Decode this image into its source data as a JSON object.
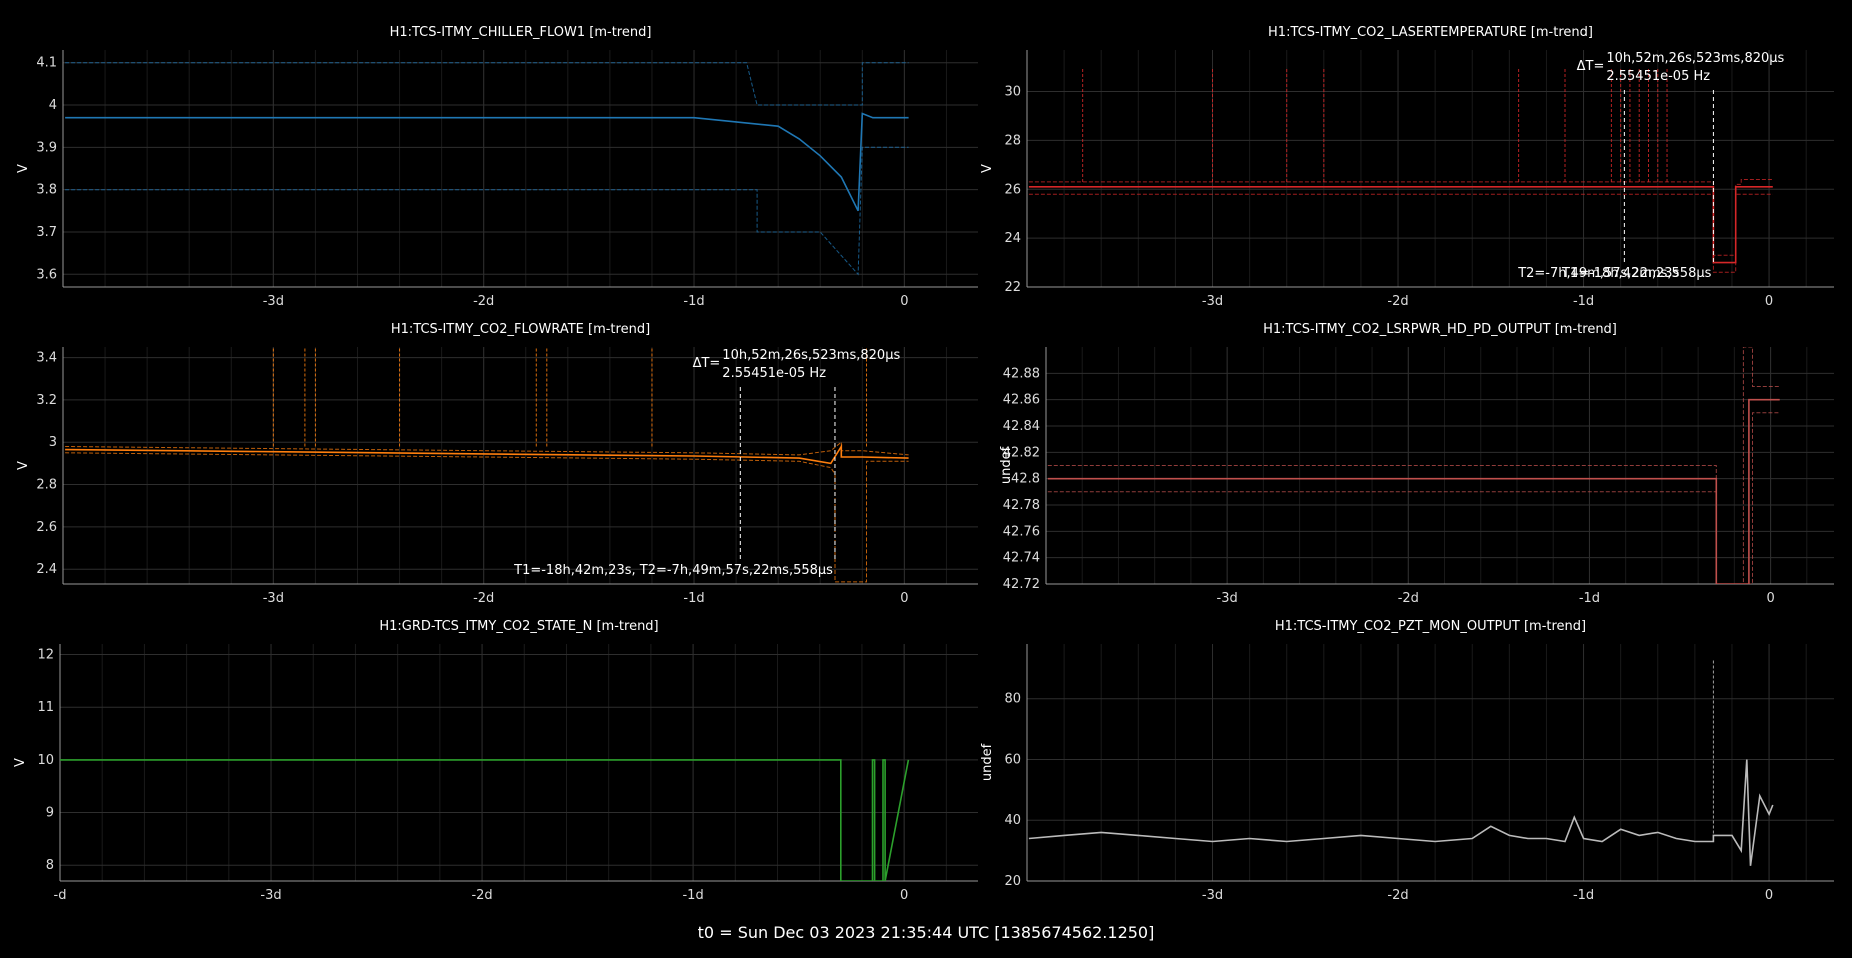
{
  "footer": "t0 = Sun Dec 03 2023 21:35:44 UTC [1385674562.1250]",
  "chart_data": [
    {
      "type": "line",
      "title": "H1:TCS-ITMY_CHILLER_FLOW1 [m-trend]",
      "ylabel": "V",
      "color": "#1f77b4",
      "xlim": [
        -4.0,
        0.35
      ],
      "ylim": [
        3.57,
        4.13
      ],
      "xticks": [
        {
          "v": -3,
          "label": "-3d"
        },
        {
          "v": -2,
          "label": "-2d"
        },
        {
          "v": -1,
          "label": "-1d"
        },
        {
          "v": 0,
          "label": "0"
        }
      ],
      "yticks": [
        {
          "v": 3.6,
          "label": "3.6"
        },
        {
          "v": 3.7,
          "label": "3.7"
        },
        {
          "v": 3.8,
          "label": "3.8"
        },
        {
          "v": 3.9,
          "label": "3.9"
        },
        {
          "v": 4.0,
          "label": "4"
        },
        {
          "v": 4.1,
          "label": "4.1"
        }
      ],
      "series": [
        {
          "role": "max",
          "x": [
            -3.99,
            -0.75,
            -0.7,
            -0.2,
            -0.2,
            0.02
          ],
          "y": [
            4.1,
            4.1,
            4.0,
            4.0,
            4.1,
            4.1
          ]
        },
        {
          "role": "mean",
          "x": [
            -3.99,
            -3.5,
            -3.0,
            -2.5,
            -2.0,
            -1.5,
            -1.0,
            -0.8,
            -0.6,
            -0.5,
            -0.4,
            -0.3,
            -0.22,
            -0.2,
            -0.15,
            0.02
          ],
          "y": [
            3.97,
            3.97,
            3.97,
            3.97,
            3.97,
            3.97,
            3.97,
            3.96,
            3.95,
            3.92,
            3.88,
            3.83,
            3.75,
            3.98,
            3.97,
            3.97
          ]
        },
        {
          "role": "min",
          "x": [
            -3.99,
            -0.7,
            -0.7,
            -0.5,
            -0.4,
            -0.22,
            -0.2,
            0.02
          ],
          "y": [
            3.8,
            3.8,
            3.7,
            3.7,
            3.7,
            3.6,
            3.9,
            3.9
          ]
        }
      ],
      "cursors": []
    },
    {
      "type": "line",
      "title": "H1:TCS-ITMY_CO2_LASERTEMPERATURE [m-trend]",
      "ylabel": "V",
      "color": "#d62728",
      "xlim": [
        -4.0,
        0.35
      ],
      "ylim": [
        22,
        31.7
      ],
      "xticks": [
        {
          "v": -3,
          "label": "-3d"
        },
        {
          "v": -2,
          "label": "-2d"
        },
        {
          "v": -1,
          "label": "-1d"
        },
        {
          "v": 0,
          "label": "0"
        }
      ],
      "yticks": [
        {
          "v": 22,
          "label": "22"
        },
        {
          "v": 24,
          "label": "24"
        },
        {
          "v": 26,
          "label": "26"
        },
        {
          "v": 28,
          "label": "28"
        },
        {
          "v": 30,
          "label": "30"
        }
      ],
      "series": [
        {
          "role": "max",
          "x": [
            -3.99,
            -0.3,
            -0.3,
            -0.18,
            -0.18,
            -0.15,
            -0.15,
            0.02
          ],
          "y": [
            26.3,
            26.3,
            23.3,
            23.3,
            26.2,
            26.2,
            26.4,
            26.4
          ]
        },
        {
          "role": "mean",
          "x": [
            -3.99,
            -0.3,
            -0.3,
            -0.18,
            -0.18,
            0.02
          ],
          "y": [
            26.1,
            26.1,
            23.0,
            23.0,
            26.1,
            26.1
          ]
        },
        {
          "role": "min",
          "x": [
            -3.99,
            -0.3,
            -0.3,
            -0.18,
            -0.18,
            0.02
          ],
          "y": [
            25.8,
            25.8,
            22.6,
            22.6,
            25.8,
            25.8
          ]
        }
      ],
      "spikes": [
        -3.7,
        -3.0,
        -2.6,
        -2.4,
        -1.35,
        -1.1,
        -0.85,
        -0.8,
        -0.75,
        -0.7,
        -0.65,
        -0.6,
        -0.55
      ],
      "spike_top": 31.0,
      "cursors": [
        -0.78,
        -0.3
      ],
      "cursor_labels": {
        "dt_symbol": "ΔT=",
        "dt_value": "10h,52m,26s,523ms,820μs",
        "freq": "2.55451e-05 Hz",
        "t1": "T1=-18h,42m,23s",
        "t2": "T2=-7h,49m,57s,22ms,558μs"
      }
    },
    {
      "type": "line",
      "title": "H1:TCS-ITMY_CO2_FLOWRATE [m-trend]",
      "ylabel": "V",
      "color": "#ff7f0e",
      "xlim": [
        -4.0,
        0.35
      ],
      "ylim": [
        2.33,
        3.45
      ],
      "xticks": [
        {
          "v": -3,
          "label": "-3d"
        },
        {
          "v": -2,
          "label": "-2d"
        },
        {
          "v": -1,
          "label": "-1d"
        },
        {
          "v": 0,
          "label": "0"
        }
      ],
      "yticks": [
        {
          "v": 2.4,
          "label": "2.4"
        },
        {
          "v": 2.6,
          "label": "2.6"
        },
        {
          "v": 2.8,
          "label": "2.8"
        },
        {
          "v": 3.0,
          "label": "3"
        },
        {
          "v": 3.2,
          "label": "3.2"
        },
        {
          "v": 3.4,
          "label": "3.4"
        }
      ],
      "series": [
        {
          "role": "max",
          "x": [
            -3.99,
            -3.0,
            -2.0,
            -1.0,
            -0.5,
            -0.35,
            -0.3,
            -0.3,
            -0.2,
            0.02
          ],
          "y": [
            2.98,
            2.97,
            2.96,
            2.95,
            2.94,
            2.96,
            3.0,
            2.96,
            2.96,
            2.94
          ]
        },
        {
          "role": "mean",
          "x": [
            -3.99,
            -3.0,
            -2.0,
            -1.0,
            -0.5,
            -0.35,
            -0.3,
            -0.3,
            -0.2,
            0.02
          ],
          "y": [
            2.965,
            2.955,
            2.945,
            2.935,
            2.925,
            2.9,
            2.98,
            2.93,
            2.93,
            2.925
          ]
        },
        {
          "role": "min",
          "x": [
            -3.99,
            -3.0,
            -2.0,
            -1.0,
            -0.5,
            -0.35,
            -0.33,
            -0.33,
            -0.18,
            -0.18,
            0.02
          ],
          "y": [
            2.95,
            2.94,
            2.93,
            2.92,
            2.91,
            2.88,
            2.85,
            2.34,
            2.34,
            2.91,
            2.91
          ]
        }
      ],
      "spikes": [
        -3.0,
        -2.85,
        -2.8,
        -2.4,
        -1.75,
        -1.7,
        -1.2,
        -0.18
      ],
      "spike_top": 3.45,
      "cursors": [
        -0.78,
        -0.33
      ],
      "cursor_labels": {
        "dt_symbol": "ΔT=",
        "dt_value": "10h,52m,26s,523ms,820μs",
        "freq": "2.55451e-05 Hz",
        "t1": "T1=-18h,42m,23s, T2=-7h,49m,57s,22ms,558μs",
        "t2": ""
      }
    },
    {
      "type": "line",
      "title": "H1:TCS-ITMY_CO2_LSRPWR_HD_PD_OUTPUT [m-trend]",
      "ylabel": "undef",
      "color": "#c0504d",
      "xlim": [
        -4.0,
        0.35
      ],
      "ylim": [
        42.72,
        42.9
      ],
      "xticks": [
        {
          "v": -3,
          "label": "-3d"
        },
        {
          "v": -2,
          "label": "-2d"
        },
        {
          "v": -1,
          "label": "-1d"
        },
        {
          "v": 0,
          "label": "0"
        }
      ],
      "yticks": [
        {
          "v": 42.72,
          "label": "42.72"
        },
        {
          "v": 42.74,
          "label": "42.74"
        },
        {
          "v": 42.76,
          "label": "42.76"
        },
        {
          "v": 42.78,
          "label": "42.78"
        },
        {
          "v": 42.8,
          "label": "42.8"
        },
        {
          "v": 42.82,
          "label": "42.82"
        },
        {
          "v": 42.84,
          "label": "42.84"
        },
        {
          "v": 42.86,
          "label": "42.86"
        },
        {
          "v": 42.88,
          "label": "42.88"
        }
      ],
      "series": [
        {
          "role": "max",
          "x": [
            -3.99,
            -0.3,
            -0.3,
            -0.15,
            -0.15,
            -0.1,
            -0.1,
            0.05
          ],
          "y": [
            42.81,
            42.81,
            42.72,
            42.72,
            42.9,
            42.9,
            42.87,
            42.87
          ]
        },
        {
          "role": "mean",
          "x": [
            -3.99,
            -0.3,
            -0.3,
            -0.12,
            -0.12,
            0.05
          ],
          "y": [
            42.8,
            42.8,
            42.72,
            42.72,
            42.86,
            42.86
          ]
        },
        {
          "role": "min",
          "x": [
            -3.99,
            -0.3,
            -0.3,
            -0.1,
            -0.1,
            0.05
          ],
          "y": [
            42.79,
            42.79,
            42.72,
            42.72,
            42.85,
            42.85
          ]
        }
      ],
      "cursors": []
    },
    {
      "type": "line",
      "title": "H1:GRD-TCS_ITMY_CO2_STATE_N [m-trend]",
      "ylabel": "V",
      "color": "#2ca02c",
      "xlim": [
        -4.0,
        0.35
      ],
      "ylim": [
        7.7,
        12.2
      ],
      "xticks": [
        {
          "v": -4,
          "label": "-d"
        },
        {
          "v": -3,
          "label": "-3d"
        },
        {
          "v": -2,
          "label": "-2d"
        },
        {
          "v": -1,
          "label": "-1d"
        },
        {
          "v": 0,
          "label": "0"
        }
      ],
      "yticks": [
        {
          "v": 8,
          "label": "8"
        },
        {
          "v": 9,
          "label": "9"
        },
        {
          "v": 10,
          "label": "10"
        },
        {
          "v": 11,
          "label": "11"
        },
        {
          "v": 12,
          "label": "12"
        }
      ],
      "series": [
        {
          "role": "mean",
          "x": [
            -4.0,
            -0.3,
            -0.3,
            -0.15,
            -0.15,
            -0.14,
            -0.14,
            -0.1,
            -0.1,
            -0.09,
            -0.09,
            0.02
          ],
          "y": [
            10,
            10,
            7.7,
            7.7,
            10,
            10,
            7.7,
            7.7,
            10,
            10,
            7.7,
            10
          ]
        }
      ],
      "cursors": []
    },
    {
      "type": "line",
      "title": "H1:TCS-ITMY_CO2_PZT_MON_OUTPUT [m-trend]",
      "ylabel": "undef",
      "color": "#bbbbbb",
      "xlim": [
        -4.0,
        0.35
      ],
      "ylim": [
        20,
        98
      ],
      "xticks": [
        {
          "v": -3,
          "label": "-3d"
        },
        {
          "v": -2,
          "label": "-2d"
        },
        {
          "v": -1,
          "label": "-1d"
        },
        {
          "v": 0,
          "label": "0"
        }
      ],
      "yticks": [
        {
          "v": 20,
          "label": "20"
        },
        {
          "v": 40,
          "label": "40"
        },
        {
          "v": 60,
          "label": "60"
        },
        {
          "v": 80,
          "label": "80"
        }
      ],
      "series": [
        {
          "role": "mean",
          "x": [
            -3.99,
            -3.8,
            -3.6,
            -3.4,
            -3.2,
            -3.0,
            -2.8,
            -2.6,
            -2.4,
            -2.2,
            -2.0,
            -1.8,
            -1.6,
            -1.5,
            -1.4,
            -1.3,
            -1.2,
            -1.1,
            -1.05,
            -1.0,
            -0.9,
            -0.8,
            -0.7,
            -0.6,
            -0.5,
            -0.4,
            -0.3,
            -0.3,
            -0.2,
            -0.15,
            -0.12,
            -0.1,
            -0.05,
            0.0,
            0.02
          ],
          "y": [
            34,
            35,
            36,
            35,
            34,
            33,
            34,
            33,
            34,
            35,
            34,
            33,
            34,
            38,
            35,
            34,
            34,
            33,
            41,
            34,
            33,
            37,
            35,
            36,
            34,
            33,
            33,
            35,
            35,
            30,
            60,
            25,
            48,
            42,
            45
          ]
        }
      ],
      "spikes": [
        -0.3
      ],
      "spike_top": 93,
      "cursors": []
    }
  ]
}
